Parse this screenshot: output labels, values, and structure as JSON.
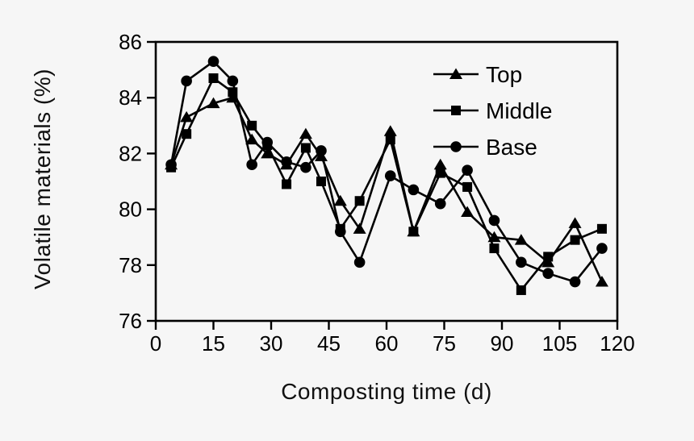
{
  "chart_data": {
    "type": "line",
    "title": "",
    "xlabel": "Composting time (d)",
    "ylabel": "Volatile materials (%)",
    "xlim": [
      0,
      120
    ],
    "ylim": [
      76,
      86
    ],
    "x_ticks": [
      0,
      15,
      30,
      45,
      60,
      75,
      90,
      105,
      120
    ],
    "y_ticks": [
      76,
      78,
      80,
      82,
      84,
      86
    ],
    "grid": false,
    "legend_position": "top-right-inside",
    "x": [
      4,
      8,
      15,
      20,
      25,
      29,
      34,
      39,
      43,
      48,
      53,
      61,
      67,
      74,
      81,
      88,
      95,
      102,
      109,
      116
    ],
    "series": [
      {
        "name": "Top",
        "marker": "triangle",
        "color": "#000000",
        "values": [
          81.6,
          83.3,
          83.8,
          84.0,
          82.5,
          82.0,
          81.6,
          82.7,
          81.9,
          80.3,
          79.3,
          82.8,
          79.2,
          81.6,
          79.9,
          79.0,
          78.9,
          78.1,
          79.5,
          77.4
        ]
      },
      {
        "name": "Middle",
        "marker": "square",
        "color": "#000000",
        "values": [
          81.5,
          82.7,
          84.7,
          84.2,
          83.0,
          82.3,
          80.9,
          82.2,
          81.0,
          79.3,
          80.3,
          82.5,
          79.2,
          81.3,
          80.8,
          78.6,
          77.1,
          78.3,
          78.9,
          79.3
        ]
      },
      {
        "name": "Base",
        "marker": "circle",
        "color": "#000000",
        "values": [
          81.6,
          84.6,
          85.3,
          84.6,
          81.6,
          82.4,
          81.7,
          81.5,
          82.1,
          79.2,
          78.1,
          81.2,
          80.7,
          80.2,
          81.4,
          79.6,
          78.1,
          77.7,
          77.4,
          78.6
        ]
      }
    ]
  },
  "colors": {
    "background": "#f6f6f6",
    "foreground": "#000000"
  }
}
